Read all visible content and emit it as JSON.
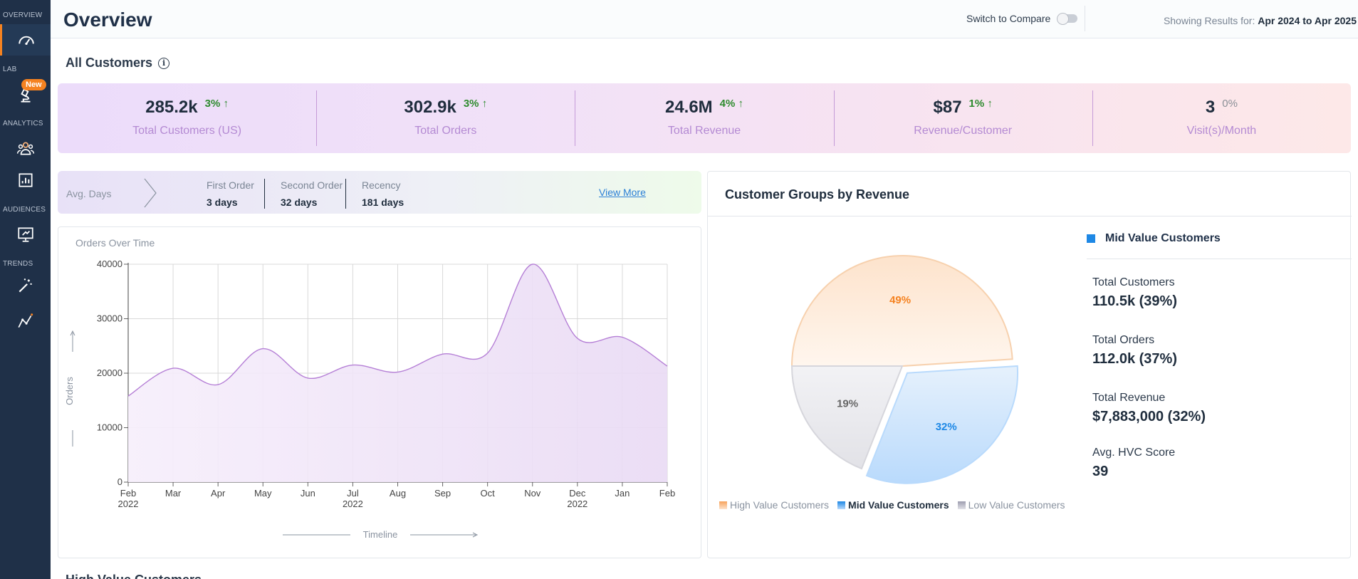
{
  "sidebar": {
    "sections": [
      "OVERVIEW",
      "LAB",
      "ANALYTICS",
      "AUDIENCES",
      "TRENDS"
    ],
    "new_badge": "New",
    "active_color": "#f58220"
  },
  "header": {
    "title": "Overview",
    "compare_label": "Switch to Compare",
    "showing_prefix": "Showing Results for:",
    "showing_range": "Apr 2024 to Apr 2025"
  },
  "all_customers": {
    "title": "All Customers",
    "info": "i",
    "kpis": [
      {
        "value": "285.2k",
        "delta": "3%",
        "arrow": "↑",
        "label": "Total Customers (US)"
      },
      {
        "value": "302.9k",
        "delta": "3%",
        "arrow": "↑",
        "label": "Total Orders"
      },
      {
        "value": "24.6M",
        "delta": "4%",
        "arrow": "↑",
        "label": "Total Revenue"
      },
      {
        "value": "$87",
        "delta": "1%",
        "arrow": "↑",
        "label": "Revenue/Customer"
      },
      {
        "value": "3",
        "delta": "0%",
        "arrow": "",
        "label": "Visit(s)/Month"
      }
    ]
  },
  "avg_days": {
    "label": "Avg. Days",
    "cols": [
      {
        "title": "First Order",
        "value": "3 days"
      },
      {
        "title": "Second Order",
        "value": "32 days"
      },
      {
        "title": "Recency",
        "value": "181 days"
      }
    ],
    "view_more": "View More"
  },
  "orders_chart": {
    "subtitle": "Orders Over Time",
    "chart_data": {
      "type": "area",
      "title": "Orders Over Time",
      "xlabel": "Timeline",
      "ylabel": "Orders",
      "ylim": [
        0,
        40000
      ],
      "yticks": [
        "0",
        "10000",
        "20000",
        "30000",
        "40000"
      ],
      "x": [
        "Feb 2022",
        "Mar",
        "Apr",
        "May",
        "Jun",
        "Jul 2022",
        "Aug",
        "Sep",
        "Oct",
        "Nov",
        "Dec 2022",
        "Jan",
        "Feb"
      ],
      "values": [
        15800,
        20900,
        17900,
        24500,
        19100,
        21500,
        20200,
        23500,
        23700,
        40000,
        26400,
        26600,
        21300
      ],
      "color": "#b57fd6",
      "grid": true
    }
  },
  "groups": {
    "title": "Customer Groups by Revenue",
    "chart_data": {
      "type": "pie",
      "title": "Customer Groups by Revenue",
      "slices": [
        {
          "name": "High Value Customers",
          "value": 49,
          "label": "49%",
          "color": "#f7a35c"
        },
        {
          "name": "Mid Value Customers",
          "value": 32,
          "label": "32%",
          "color": "#1e88e5"
        },
        {
          "name": "Low Value Customers",
          "value": 19,
          "label": "19%",
          "color": "#9e9eb0"
        }
      ],
      "selected": "Mid Value Customers",
      "legend": "bottom"
    },
    "detail": {
      "heading": "Mid Value Customers",
      "metrics": [
        {
          "label": "Total Customers",
          "value": "110.5k (39%)"
        },
        {
          "label": "Total Orders",
          "value": "112.0k (37%)"
        },
        {
          "label": "Total Revenue",
          "value": "$7,883,000 (32%)"
        },
        {
          "label": "Avg. HVC Score",
          "value": "39"
        }
      ]
    }
  },
  "next_section": {
    "title": "High Value Customers"
  }
}
